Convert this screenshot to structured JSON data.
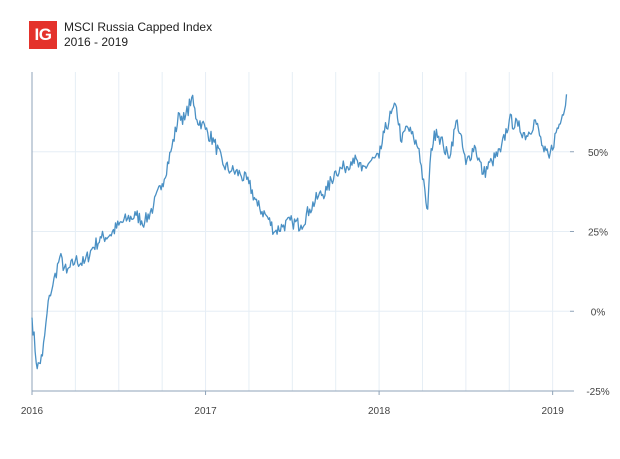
{
  "logo": {
    "text": "IG",
    "color": "#e4322b"
  },
  "chart_data": {
    "type": "line",
    "title": "MSCI Russia Capped Index",
    "subtitle": "2016 - 2019",
    "xlabel": "",
    "ylabel": "",
    "x_ticks": [
      {
        "label": "2016",
        "value": 2016.0
      },
      {
        "label": "2017",
        "value": 2017.0
      },
      {
        "label": "2018",
        "value": 2018.0
      },
      {
        "label": "2019",
        "value": 2019.0
      }
    ],
    "y_ticks": [
      {
        "label": "50%",
        "value": 50
      },
      {
        "label": "25%",
        "value": 25
      },
      {
        "label": "0%",
        "value": 0
      },
      {
        "label": "-25%",
        "value": -25
      }
    ],
    "xlim": [
      2016.0,
      2019.1
    ],
    "ylim": [
      -25,
      75
    ],
    "grid": true,
    "line_color": "#4a90c4",
    "series": [
      {
        "name": "MSCI Russia Capped",
        "x": [
          2016.0,
          2016.03,
          2016.06,
          2016.1,
          2016.12,
          2016.16,
          2016.2,
          2016.25,
          2016.3,
          2016.35,
          2016.4,
          2016.45,
          2016.5,
          2016.55,
          2016.6,
          2016.65,
          2016.7,
          2016.75,
          2016.8,
          2016.85,
          2016.88,
          2016.92,
          2016.95,
          2016.98,
          2017.0,
          2017.05,
          2017.1,
          2017.15,
          2017.2,
          2017.25,
          2017.3,
          2017.35,
          2017.4,
          2017.45,
          2017.5,
          2017.55,
          2017.6,
          2017.65,
          2017.7,
          2017.75,
          2017.8,
          2017.85,
          2017.9,
          2017.95,
          2018.0,
          2018.03,
          2018.07,
          2018.1,
          2018.13,
          2018.16,
          2018.2,
          2018.23,
          2018.27,
          2018.28,
          2018.3,
          2018.33,
          2018.37,
          2018.4,
          2018.45,
          2018.5,
          2018.55,
          2018.6,
          2018.65,
          2018.7,
          2018.75,
          2018.8,
          2018.85,
          2018.9,
          2018.95,
          2018.98,
          2019.02,
          2019.05,
          2019.08
        ],
        "values": [
          -2,
          -18,
          -14,
          5,
          8,
          17,
          12,
          16,
          15,
          20,
          23,
          24,
          27,
          29,
          30,
          28,
          33,
          40,
          50,
          62,
          60,
          67,
          60,
          59,
          57,
          53,
          46,
          44,
          43,
          40,
          33,
          30,
          25,
          27,
          28,
          27,
          32,
          36,
          38,
          44,
          45,
          48,
          44,
          47,
          48,
          56,
          62,
          64,
          53,
          58,
          54,
          51,
          34,
          32,
          51,
          57,
          52,
          48,
          60,
          46,
          52,
          43,
          47,
          50,
          60,
          58,
          55,
          60,
          50,
          48,
          56,
          60,
          68
        ]
      }
    ]
  }
}
